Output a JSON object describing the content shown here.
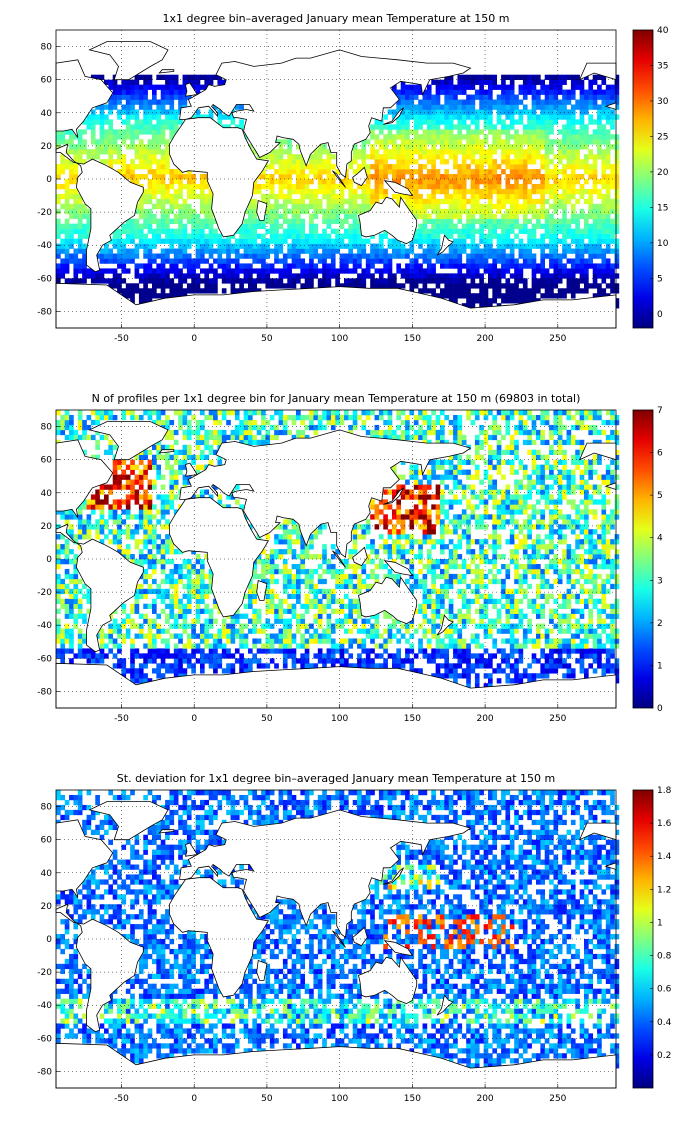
{
  "chart_data": [
    {
      "type": "heatmap",
      "title": "1x1 degree bin–averaged January mean Temperature at 150 m",
      "xlim": [
        -95,
        290
      ],
      "ylim": [
        -90,
        90
      ],
      "xticks": [
        -50,
        0,
        50,
        100,
        150,
        200,
        250
      ],
      "yticks": [
        -80,
        -60,
        -40,
        -20,
        0,
        20,
        40,
        60,
        80
      ],
      "colorbar": {
        "min": -2,
        "max": 40,
        "ticks": [
          0,
          5,
          10,
          15,
          20,
          25,
          30,
          35,
          40
        ],
        "colormap": "jet"
      },
      "grid": true,
      "field": "temperature"
    },
    {
      "type": "heatmap",
      "title": "N of profiles per 1x1 degree bin for January mean Temperature at 150 m (69803 in total)",
      "xlim": [
        -95,
        290
      ],
      "ylim": [
        -90,
        90
      ],
      "xticks": [
        -50,
        0,
        50,
        100,
        150,
        200,
        250
      ],
      "yticks": [
        -80,
        -60,
        -40,
        -20,
        0,
        20,
        40,
        60,
        80
      ],
      "colorbar": {
        "min": 0,
        "max": 7,
        "ticks": [
          0,
          1,
          2,
          3,
          4,
          5,
          6,
          7
        ],
        "colormap": "jet"
      },
      "grid": true,
      "field": "count"
    },
    {
      "type": "heatmap",
      "title": "St. deviation for 1x1 degree bin–averaged January mean Temperature at 150 m",
      "xlim": [
        -95,
        290
      ],
      "ylim": [
        -90,
        90
      ],
      "xticks": [
        -50,
        0,
        50,
        100,
        150,
        200,
        250
      ],
      "yticks": [
        -80,
        -60,
        -40,
        -20,
        0,
        20,
        40,
        60,
        80
      ],
      "colorbar": {
        "min": 0,
        "max": 1.8,
        "ticks": [
          0.2,
          0.4,
          0.6,
          0.8,
          1,
          1.2,
          1.4,
          1.6,
          1.8
        ],
        "colormap": "jet"
      },
      "grid": true,
      "field": "stdev"
    }
  ]
}
